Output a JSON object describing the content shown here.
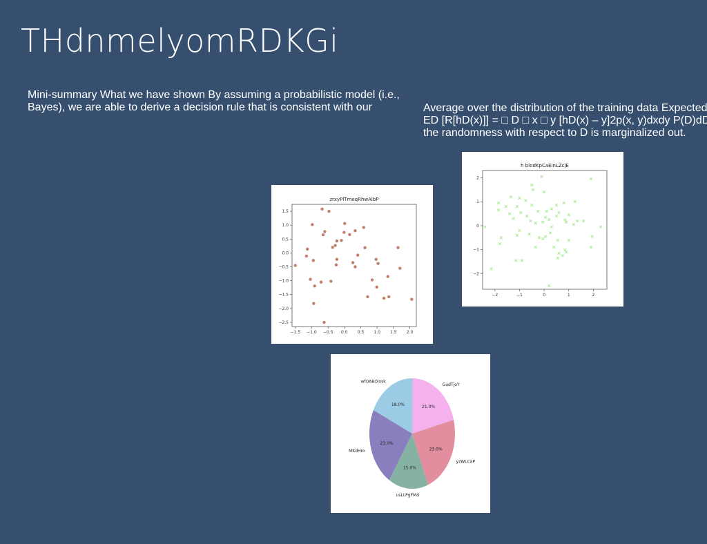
{
  "slide": {
    "title": "THdnmelyomRDKGi",
    "left_text": "Mini-summary What we have shown By assuming a probabilistic model (i.e., Bayes), we are able to derive a decision rule that is consistent with our",
    "right_text_lines": [
      "Average over the distribution of the training data Expected",
      "ED [R[hD(x)]] = □ D □ x □ y [hD(x) – y]2p(x, y)dxdy P(D)dD",
      "the randomness with respect to D is marginalized out."
    ]
  },
  "chart_data": [
    {
      "type": "scatter",
      "title": "zrxyPlTmeqRhwAlbP",
      "color": "#c0806c",
      "marker": "circle",
      "xlim": [
        -1.6,
        2.2
      ],
      "ylim": [
        -2.65,
        1.75
      ],
      "xticks": [
        -1.5,
        -1.0,
        -0.5,
        0.0,
        0.5,
        1.0,
        1.5,
        2.0
      ],
      "yticks": [
        -2.5,
        -2.0,
        -1.5,
        -1.0,
        -0.5,
        0.0,
        0.5,
        1.0,
        1.5
      ],
      "tick_labels_x": [
        "−1.5",
        "−1.0",
        "−0.5",
        "0.0",
        "0.5",
        "1.0",
        "1.5",
        "2.0"
      ],
      "tick_labels_y": [
        "−2.5",
        "−2.0",
        "−1.5",
        "−1.0",
        "−0.5",
        "0.0",
        "0.5",
        "1.0",
        "1.5"
      ],
      "points": [
        [
          -0.68,
          1.58
        ],
        [
          -0.47,
          1.5
        ],
        [
          -0.98,
          1.02
        ],
        [
          0.01,
          1.06
        ],
        [
          0.59,
          0.92
        ],
        [
          -0.6,
          0.77
        ],
        [
          -0.65,
          0.65
        ],
        [
          0.33,
          0.8
        ],
        [
          -0.01,
          0.74
        ],
        [
          0.16,
          0.66
        ],
        [
          -0.23,
          0.43
        ],
        [
          -0.09,
          0.45
        ],
        [
          -0.28,
          0.27
        ],
        [
          -0.36,
          0.2
        ],
        [
          -1.13,
          0.14
        ],
        [
          0.63,
          0.19
        ],
        [
          1.64,
          0.19
        ],
        [
          -1.16,
          -0.11
        ],
        [
          0.41,
          -0.08
        ],
        [
          -0.95,
          -0.27
        ],
        [
          -0.23,
          -0.23
        ],
        [
          0.97,
          -0.23
        ],
        [
          0.26,
          -0.35
        ],
        [
          -0.25,
          -0.43
        ],
        [
          1.03,
          -0.38
        ],
        [
          -1.5,
          -0.45
        ],
        [
          0.33,
          -0.5
        ],
        [
          1.7,
          -0.55
        ],
        [
          1.33,
          -0.85
        ],
        [
          -1.04,
          -0.95
        ],
        [
          0.85,
          -0.97
        ],
        [
          -0.41,
          -1.02
        ],
        [
          -0.71,
          -1.05
        ],
        [
          -0.91,
          -1.19
        ],
        [
          0.99,
          -1.23
        ],
        [
          0.71,
          -1.58
        ],
        [
          1.36,
          -1.58
        ],
        [
          1.21,
          -1.63
        ],
        [
          2.06,
          -1.67
        ],
        [
          -0.94,
          -1.82
        ],
        [
          -0.62,
          -2.5
        ]
      ]
    },
    {
      "type": "scatter",
      "title": "h blodKpCaEinLZcjE",
      "color": "#a8e890",
      "marker": "x",
      "xlim": [
        -2.5,
        2.55
      ],
      "ylim": [
        -2.65,
        2.3
      ],
      "xticks": [
        -2,
        -1,
        0,
        1,
        2
      ],
      "yticks": [
        -2,
        -1,
        0,
        1,
        2
      ],
      "tick_labels_x": [
        "−2",
        "−1",
        "0",
        "1",
        "2"
      ],
      "tick_labels_y": [
        "−2",
        "−1",
        "0",
        "1",
        "2"
      ],
      "points": [
        [
          -0.1,
          2.05
        ],
        [
          -0.5,
          1.7
        ],
        [
          -0.45,
          1.5
        ],
        [
          1.9,
          1.95
        ],
        [
          0.0,
          1.4
        ],
        [
          -1.35,
          1.2
        ],
        [
          -1.0,
          1.15
        ],
        [
          -0.75,
          1.05
        ],
        [
          -1.85,
          0.95
        ],
        [
          -1.55,
          0.8
        ],
        [
          -1.1,
          0.8
        ],
        [
          -0.5,
          0.85
        ],
        [
          0.8,
          0.95
        ],
        [
          1.25,
          1.0
        ],
        [
          0.5,
          0.85
        ],
        [
          -0.25,
          0.6
        ],
        [
          0.1,
          0.6
        ],
        [
          0.3,
          0.7
        ],
        [
          -1.85,
          0.65
        ],
        [
          -1.4,
          0.5
        ],
        [
          -0.95,
          0.55
        ],
        [
          -0.7,
          0.4
        ],
        [
          0.6,
          0.55
        ],
        [
          1.0,
          0.45
        ],
        [
          -1.25,
          0.3
        ],
        [
          -0.55,
          0.2
        ],
        [
          0.05,
          0.35
        ],
        [
          0.2,
          0.25
        ],
        [
          0.5,
          0.4
        ],
        [
          1.35,
          0.2
        ],
        [
          0.9,
          0.15
        ],
        [
          -0.35,
          0.1
        ],
        [
          -0.05,
          0.15
        ],
        [
          0.85,
          0.25
        ],
        [
          1.2,
          0.05
        ],
        [
          0.3,
          -0.05
        ],
        [
          -2.4,
          -0.05
        ],
        [
          2.3,
          -0.05
        ],
        [
          1.6,
          0.2
        ],
        [
          -1.0,
          -0.2
        ],
        [
          -0.6,
          -0.35
        ],
        [
          0.05,
          -0.45
        ],
        [
          0.25,
          -0.3
        ],
        [
          -0.2,
          -0.5
        ],
        [
          -0.05,
          -0.55
        ],
        [
          1.95,
          -0.45
        ],
        [
          -1.75,
          -0.5
        ],
        [
          -1.1,
          -0.4
        ],
        [
          0.55,
          -0.6
        ],
        [
          1.0,
          -0.6
        ],
        [
          -1.8,
          -0.75
        ],
        [
          -0.35,
          -0.9
        ],
        [
          0.4,
          -0.9
        ],
        [
          1.9,
          -0.9
        ],
        [
          0.85,
          -1.0
        ],
        [
          0.9,
          -1.1
        ],
        [
          0.6,
          -1.15
        ],
        [
          0.75,
          -1.25
        ],
        [
          0.55,
          -1.35
        ],
        [
          -1.15,
          -1.45
        ],
        [
          -0.9,
          -1.45
        ],
        [
          -2.15,
          -1.8
        ],
        [
          0.2,
          -2.5
        ]
      ]
    },
    {
      "type": "pie",
      "title": "",
      "slices": [
        {
          "label": "GudTjoY",
          "value": 21.0,
          "pct_label": "21.0%",
          "color": "#f4b1ee"
        },
        {
          "label": "yzWLCaP",
          "value": 23.0,
          "pct_label": "23.0%",
          "color": "#e28e9e"
        },
        {
          "label": "usLLPgFMd",
          "value": 15.0,
          "pct_label": "15.0%",
          "color": "#86b2a4"
        },
        {
          "label": "MKdHro",
          "value": 23.0,
          "pct_label": "23.0%",
          "color": "#8a7fbe"
        },
        {
          "label": "wfOABOlxsk",
          "value": 18.0,
          "pct_label": "18.0%",
          "color": "#9ccbe6"
        }
      ]
    }
  ]
}
